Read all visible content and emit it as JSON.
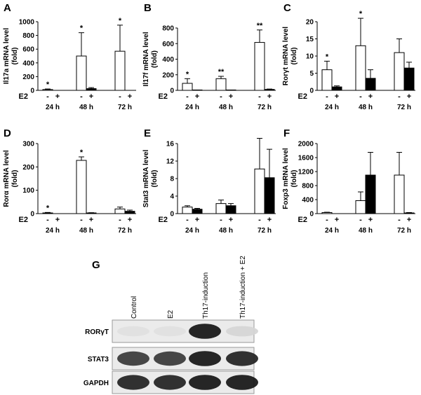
{
  "figure": {
    "treatment_label": "E2",
    "minus_sign": "-",
    "plus_sign": "+",
    "groups": [
      "24 h",
      "48 h",
      "72 h"
    ]
  },
  "chart_data": [
    {
      "panel": "A",
      "type": "bar",
      "ylabel": "Il17a mRNA level (fold)",
      "ylim": [
        0,
        1000
      ],
      "yticks": [
        0,
        200,
        400,
        600,
        800,
        1000
      ],
      "categories": [
        "24 h",
        "48 h",
        "72 h"
      ],
      "series": [
        {
          "values": [
            12,
            500,
            570
          ],
          "errors": [
            8,
            340,
            380
          ]
        },
        {
          "values": [
            0,
            25,
            0
          ],
          "errors": [
            0,
            15,
            0
          ]
        }
      ],
      "significance": [
        "*",
        "*",
        "*"
      ]
    },
    {
      "panel": "B",
      "type": "bar",
      "ylabel": "Il17f mRNA level (fold)",
      "ylim": [
        0,
        800
      ],
      "yticks": [
        0,
        200,
        400,
        600,
        800
      ],
      "categories": [
        "24 h",
        "48 h",
        "72 h"
      ],
      "series": [
        {
          "values": [
            90,
            150,
            615
          ],
          "errors": [
            60,
            30,
            160
          ]
        },
        {
          "values": [
            5,
            5,
            12
          ],
          "errors": [
            0,
            0,
            5
          ]
        }
      ],
      "significance": [
        "*",
        "**",
        "**"
      ]
    },
    {
      "panel": "C",
      "type": "bar",
      "ylabel": "Rorγt mRNA level (fold)",
      "ylim": [
        0,
        20
      ],
      "yticks": [
        0,
        5,
        10,
        15,
        20
      ],
      "categories": [
        "24 h",
        "48 h",
        "72 h"
      ],
      "series": [
        {
          "values": [
            6,
            13,
            11
          ],
          "errors": [
            2.5,
            8,
            4
          ]
        },
        {
          "values": [
            1,
            3.5,
            6.5
          ],
          "errors": [
            0.3,
            2.5,
            1.7
          ]
        }
      ],
      "significance": [
        "*",
        "*",
        ""
      ]
    },
    {
      "panel": "D",
      "type": "bar",
      "ylabel": "Rorα mRNA level (fold)",
      "ylim": [
        0,
        300
      ],
      "yticks": [
        0,
        100,
        200,
        300
      ],
      "categories": [
        "24 h",
        "48 h",
        "72 h"
      ],
      "series": [
        {
          "values": [
            3,
            228,
            20
          ],
          "errors": [
            2,
            15,
            8
          ]
        },
        {
          "values": [
            0,
            3,
            10
          ],
          "errors": [
            0,
            1,
            5
          ]
        }
      ],
      "significance": [
        "*",
        "*",
        ""
      ]
    },
    {
      "panel": "E",
      "type": "bar",
      "ylabel": "Stat3 mRNA level (fold)",
      "ylim": [
        0,
        16
      ],
      "yticks": [
        0,
        4,
        8,
        12,
        16
      ],
      "categories": [
        "24 h",
        "48 h",
        "72 h"
      ],
      "series": [
        {
          "values": [
            1.5,
            2.3,
            10.2
          ],
          "errors": [
            0.3,
            0.8,
            7
          ]
        },
        {
          "values": [
            1.0,
            1.8,
            8.2
          ],
          "errors": [
            0.2,
            0.5,
            6.5
          ]
        }
      ],
      "significance": [
        "",
        "",
        ""
      ]
    },
    {
      "panel": "F",
      "type": "bar",
      "ylabel": "Foxp3 mRNA level (fold)",
      "ylim": [
        0,
        2000
      ],
      "yticks": [
        0,
        400,
        800,
        1200,
        1600,
        2000
      ],
      "categories": [
        "24 h",
        "48 h",
        "72 h"
      ],
      "series": [
        {
          "values": [
            30,
            370,
            1100
          ],
          "errors": [
            10,
            250,
            650
          ]
        },
        {
          "values": [
            0,
            1100,
            20
          ],
          "errors": [
            0,
            650,
            10
          ]
        }
      ],
      "significance": [
        "",
        "",
        ""
      ]
    }
  ],
  "blot": {
    "panel": "G",
    "lanes": [
      "Control",
      "E2",
      "Th17-induction",
      "Th17-induction + E2"
    ],
    "rows": [
      {
        "label": "RORγT",
        "band_intensity": [
          0.05,
          0.05,
          0.95,
          0.1
        ]
      },
      {
        "label": "STAT3",
        "band_intensity": [
          0.8,
          0.8,
          0.95,
          0.9
        ]
      },
      {
        "label": "GAPDH",
        "band_intensity": [
          0.9,
          0.9,
          0.95,
          0.95
        ]
      }
    ]
  }
}
